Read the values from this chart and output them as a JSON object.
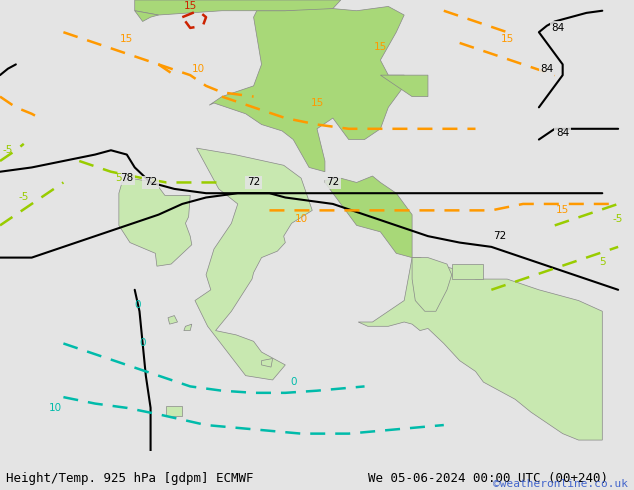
{
  "title_left": "Height/Temp. 925 hPa [gdpm] ECMWF",
  "title_right": "We 05-06-2024 00:00 UTC (00+240)",
  "credit": "©weatheronline.co.uk",
  "bg_color": "#e4e4e4",
  "land_color_pale": "#c8e8b0",
  "land_color_green": "#a8d878",
  "border_color": "#999999",
  "fig_width": 6.34,
  "fig_height": 4.9,
  "dpi": 100,
  "title_fontsize": 9,
  "credit_fontsize": 8,
  "credit_color": "#4466cc",
  "black_color": "#000000",
  "cyan_color": "#00bbaa",
  "yg_color": "#99cc00",
  "orange_color": "#ff9900",
  "red_color": "#cc2200",
  "label_fs": 7.5
}
